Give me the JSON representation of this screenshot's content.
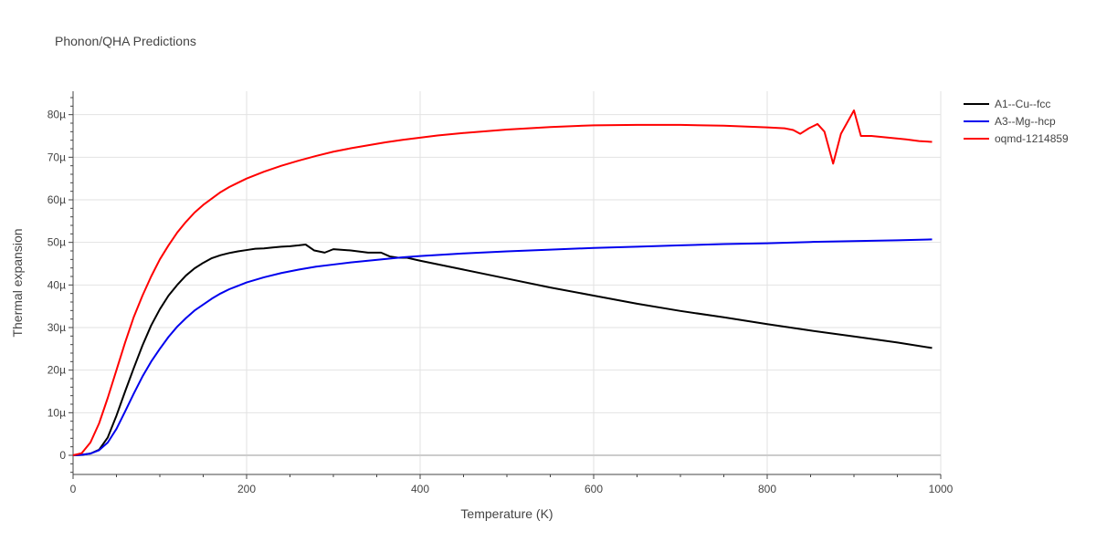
{
  "chart_data": {
    "type": "line",
    "title": "Phonon/QHA Predictions",
    "xlabel": "Temperature (K)",
    "ylabel": "Thermal expansion",
    "xlim": [
      0,
      1000
    ],
    "ylim": [
      -4.5,
      85.5
    ],
    "x_ticks": [
      0,
      200,
      400,
      600,
      800,
      1000
    ],
    "x_tick_labels": [
      "0",
      "200",
      "400",
      "600",
      "800",
      "1000"
    ],
    "y_ticks": [
      0,
      10,
      20,
      30,
      40,
      50,
      60,
      70,
      80
    ],
    "y_tick_labels": [
      "0",
      "10µ",
      "20µ",
      "30µ",
      "40µ",
      "50µ",
      "60µ",
      "70µ",
      "80µ"
    ],
    "grid": true,
    "legend_position": "top-right",
    "series": [
      {
        "name": "A1--Cu--fcc",
        "color": "#000000",
        "points": [
          [
            0,
            0
          ],
          [
            10,
            0.1
          ],
          [
            20,
            0.4
          ],
          [
            30,
            1.3
          ],
          [
            40,
            4.2
          ],
          [
            50,
            9.3
          ],
          [
            60,
            15.0
          ],
          [
            70,
            20.5
          ],
          [
            80,
            25.8
          ],
          [
            90,
            30.5
          ],
          [
            100,
            34.3
          ],
          [
            110,
            37.5
          ],
          [
            120,
            40.0
          ],
          [
            130,
            42.2
          ],
          [
            140,
            43.9
          ],
          [
            150,
            45.2
          ],
          [
            160,
            46.3
          ],
          [
            170,
            47.0
          ],
          [
            180,
            47.5
          ],
          [
            190,
            47.9
          ],
          [
            200,
            48.2
          ],
          [
            210,
            48.5
          ],
          [
            220,
            48.6
          ],
          [
            230,
            48.8
          ],
          [
            240,
            49.0
          ],
          [
            250,
            49.1
          ],
          [
            260,
            49.3
          ],
          [
            268,
            49.5
          ],
          [
            278,
            48.1
          ],
          [
            290,
            47.6
          ],
          [
            300,
            48.4
          ],
          [
            320,
            48.1
          ],
          [
            340,
            47.6
          ],
          [
            355,
            47.6
          ],
          [
            365,
            46.7
          ],
          [
            375,
            46.4
          ],
          [
            385,
            46.4
          ],
          [
            400,
            45.7
          ],
          [
            450,
            43.6
          ],
          [
            500,
            41.5
          ],
          [
            550,
            39.4
          ],
          [
            600,
            37.5
          ],
          [
            650,
            35.6
          ],
          [
            700,
            33.9
          ],
          [
            750,
            32.4
          ],
          [
            800,
            30.8
          ],
          [
            850,
            29.3
          ],
          [
            900,
            27.9
          ],
          [
            950,
            26.5
          ],
          [
            990,
            25.2
          ]
        ]
      },
      {
        "name": "A3--Mg--hcp",
        "color": "#0000ee",
        "points": [
          [
            0,
            0
          ],
          [
            10,
            0.1
          ],
          [
            20,
            0.4
          ],
          [
            30,
            1.2
          ],
          [
            40,
            3.0
          ],
          [
            50,
            6.2
          ],
          [
            60,
            10.3
          ],
          [
            70,
            14.5
          ],
          [
            80,
            18.5
          ],
          [
            90,
            22.0
          ],
          [
            100,
            25.0
          ],
          [
            110,
            27.8
          ],
          [
            120,
            30.2
          ],
          [
            130,
            32.2
          ],
          [
            140,
            34.0
          ],
          [
            150,
            35.4
          ],
          [
            160,
            36.8
          ],
          [
            170,
            38.0
          ],
          [
            180,
            39.0
          ],
          [
            190,
            39.8
          ],
          [
            200,
            40.6
          ],
          [
            220,
            41.8
          ],
          [
            240,
            42.8
          ],
          [
            260,
            43.6
          ],
          [
            280,
            44.3
          ],
          [
            300,
            44.8
          ],
          [
            320,
            45.3
          ],
          [
            340,
            45.7
          ],
          [
            360,
            46.1
          ],
          [
            380,
            46.5
          ],
          [
            400,
            46.8
          ],
          [
            450,
            47.4
          ],
          [
            500,
            47.9
          ],
          [
            550,
            48.3
          ],
          [
            600,
            48.7
          ],
          [
            650,
            49.0
          ],
          [
            700,
            49.3
          ],
          [
            750,
            49.6
          ],
          [
            800,
            49.8
          ],
          [
            850,
            50.1
          ],
          [
            900,
            50.3
          ],
          [
            950,
            50.5
          ],
          [
            990,
            50.7
          ]
        ]
      },
      {
        "name": "oqmd-1214859",
        "color": "#ff0000",
        "points": [
          [
            0,
            0
          ],
          [
            10,
            0.5
          ],
          [
            20,
            3.0
          ],
          [
            30,
            7.5
          ],
          [
            40,
            13.5
          ],
          [
            50,
            20.0
          ],
          [
            60,
            26.5
          ],
          [
            70,
            32.5
          ],
          [
            80,
            37.5
          ],
          [
            90,
            42.0
          ],
          [
            100,
            46.0
          ],
          [
            110,
            49.3
          ],
          [
            120,
            52.3
          ],
          [
            130,
            54.8
          ],
          [
            140,
            57.0
          ],
          [
            150,
            58.8
          ],
          [
            160,
            60.3
          ],
          [
            170,
            61.8
          ],
          [
            180,
            63.0
          ],
          [
            190,
            64.0
          ],
          [
            200,
            65.0
          ],
          [
            220,
            66.6
          ],
          [
            240,
            68.0
          ],
          [
            260,
            69.2
          ],
          [
            280,
            70.3
          ],
          [
            300,
            71.3
          ],
          [
            320,
            72.1
          ],
          [
            340,
            72.8
          ],
          [
            360,
            73.5
          ],
          [
            380,
            74.1
          ],
          [
            400,
            74.6
          ],
          [
            420,
            75.1
          ],
          [
            450,
            75.7
          ],
          [
            500,
            76.5
          ],
          [
            550,
            77.1
          ],
          [
            600,
            77.5
          ],
          [
            650,
            77.6
          ],
          [
            700,
            77.6
          ],
          [
            750,
            77.4
          ],
          [
            800,
            77.0
          ],
          [
            820,
            76.8
          ],
          [
            830,
            76.4
          ],
          [
            838,
            75.5
          ],
          [
            848,
            76.8
          ],
          [
            858,
            77.8
          ],
          [
            866,
            76.0
          ],
          [
            876,
            68.5
          ],
          [
            885,
            75.5
          ],
          [
            900,
            81.0
          ],
          [
            908,
            75.0
          ],
          [
            920,
            75.0
          ],
          [
            940,
            74.6
          ],
          [
            960,
            74.2
          ],
          [
            975,
            73.8
          ],
          [
            990,
            73.6
          ]
        ]
      }
    ]
  }
}
